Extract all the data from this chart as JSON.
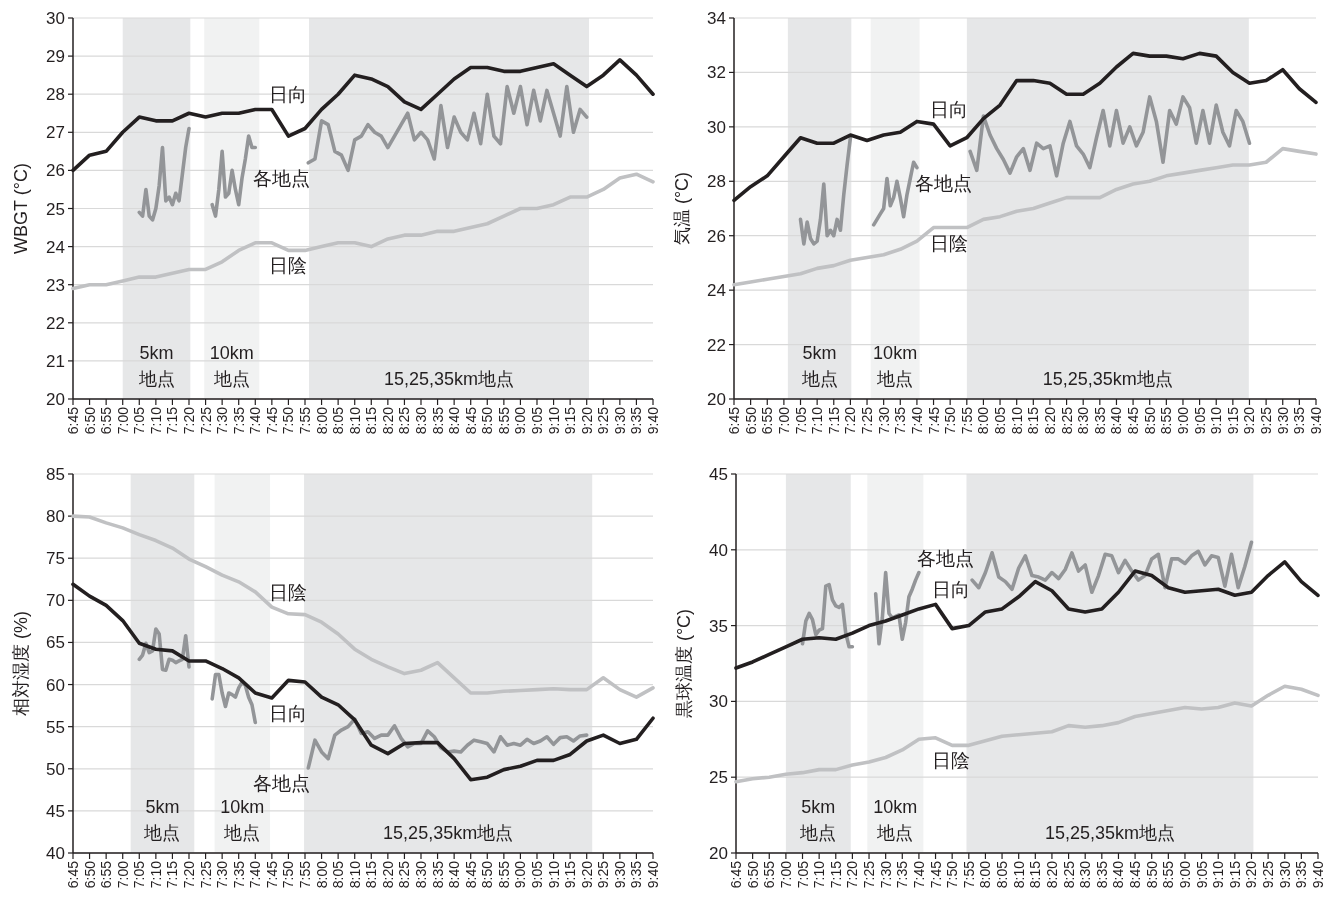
{
  "chart_data": [
    {
      "type": "line",
      "ylabel": "WBGT (°C)",
      "xlim": [
        6.75,
        9.6667
      ],
      "ylim": [
        20,
        30
      ],
      "yticks": [
        20,
        21,
        22,
        23,
        24,
        25,
        26,
        27,
        28,
        29,
        30
      ],
      "grid": "y",
      "xticks": [
        {
          "value": 6.75,
          "label": "6:45"
        },
        {
          "value": 6.8333,
          "label": "6:50"
        },
        {
          "value": 6.9167,
          "label": "6:55"
        },
        {
          "value": 7,
          "label": "7:00"
        },
        {
          "value": 7.0833,
          "label": "7:05"
        },
        {
          "value": 7.1667,
          "label": "7:10"
        },
        {
          "value": 7.25,
          "label": "7:15"
        },
        {
          "value": 7.3333,
          "label": "7:20"
        },
        {
          "value": 7.4167,
          "label": "7:25"
        },
        {
          "value": 7.5,
          "label": "7:30"
        },
        {
          "value": 7.5833,
          "label": "7:35"
        },
        {
          "value": 7.6667,
          "label": "7:40"
        },
        {
          "value": 7.75,
          "label": "7:45"
        },
        {
          "value": 7.8333,
          "label": "7:50"
        },
        {
          "value": 7.9167,
          "label": "7:55"
        },
        {
          "value": 8,
          "label": "8:00"
        },
        {
          "value": 8.0833,
          "label": "8:05"
        },
        {
          "value": 8.1667,
          "label": "8:10"
        },
        {
          "value": 8.25,
          "label": "8:15"
        },
        {
          "value": 8.3333,
          "label": "8:20"
        },
        {
          "value": 8.4167,
          "label": "8:25"
        },
        {
          "value": 8.5,
          "label": "8:30"
        },
        {
          "value": 8.5833,
          "label": "8:35"
        },
        {
          "value": 8.6667,
          "label": "8:40"
        },
        {
          "value": 8.75,
          "label": "8:45"
        },
        {
          "value": 8.8333,
          "label": "8:50"
        },
        {
          "value": 8.9167,
          "label": "8:55"
        },
        {
          "value": 9,
          "label": "9:00"
        },
        {
          "value": 9.0833,
          "label": "9:05"
        },
        {
          "value": 9.1667,
          "label": "9:10"
        },
        {
          "value": 9.25,
          "label": "9:15"
        },
        {
          "value": 9.3333,
          "label": "9:20"
        },
        {
          "value": 9.4167,
          "label": "9:25"
        },
        {
          "value": 9.5,
          "label": "9:30"
        },
        {
          "value": 9.5833,
          "label": "9:35"
        },
        {
          "value": 9.6667,
          "label": "9:40"
        }
      ],
      "bands": [
        {
          "axis": "x",
          "from": 7.0,
          "to": 7.34,
          "label": "5km\n地点",
          "color": "#e6e7e8"
        },
        {
          "axis": "x",
          "from": 7.41,
          "to": 7.687,
          "label": "10km\n地点",
          "color": "#f1f2f2"
        },
        {
          "axis": "x",
          "from": 7.937,
          "to": 9.345,
          "label": "15,25,35km地点",
          "color": "#e6e7e8"
        }
      ],
      "series": [
        {
          "name": "日陰",
          "color": "#c0c1c3",
          "x": [
            6.75,
            6.8333,
            6.9167,
            7,
            7.0833,
            7.1667,
            7.25,
            7.3333,
            7.4167,
            7.5,
            7.5833,
            7.6667,
            7.75,
            7.8333,
            7.9167,
            8,
            8.0833,
            8.1667,
            8.25,
            8.3333,
            8.4167,
            8.5,
            8.5833,
            8.6667,
            8.75,
            8.8333,
            8.9167,
            9,
            9.0833,
            9.1667,
            9.25,
            9.3333,
            9.4167,
            9.5,
            9.5833,
            9.6667
          ],
          "values": [
            22.9,
            23.0,
            23.0,
            23.1,
            23.2,
            23.2,
            23.3,
            23.4,
            23.4,
            23.6,
            23.9,
            24.1,
            24.1,
            23.9,
            23.9,
            24.0,
            24.1,
            24.1,
            24.0,
            24.2,
            24.3,
            24.3,
            24.4,
            24.4,
            24.5,
            24.6,
            24.8,
            25.0,
            25.0,
            25.1,
            25.3,
            25.3,
            25.5,
            25.8,
            25.9,
            25.7
          ]
        },
        {
          "name": "各地点",
          "color": "#939598",
          "x": [
            7.0833,
            7.1,
            7.1167,
            7.1333,
            7.15,
            7.1667,
            7.1833,
            7.2,
            7.2167,
            7.2333,
            7.25,
            7.2667,
            7.2833,
            7.3,
            7.3167,
            7.3333,
            7.4,
            7.45,
            7.4667,
            7.4833,
            7.5,
            7.5167,
            7.5333,
            7.55,
            7.5667,
            7.5833,
            7.6,
            7.6167,
            7.6333,
            7.65,
            7.6667,
            7.8,
            7.9333,
            7.9667,
            8,
            8.0333,
            8.0667,
            8.1,
            8.1333,
            8.1667,
            8.2,
            8.2333,
            8.2667,
            8.3,
            8.3333,
            8.3667,
            8.4,
            8.4333,
            8.4667,
            8.5,
            8.5333,
            8.5667,
            8.6,
            8.6333,
            8.6667,
            8.7,
            8.7333,
            8.7667,
            8.8,
            8.8333,
            8.8667,
            8.9,
            8.9333,
            8.9667,
            9,
            9.0333,
            9.0667,
            9.1,
            9.1333,
            9.1667,
            9.2,
            9.2333,
            9.2667,
            9.3,
            9.3333
          ],
          "values": [
            24.9,
            24.8,
            25.5,
            24.8,
            24.7,
            25.0,
            25.6,
            26.6,
            25.2,
            25.3,
            25.1,
            25.4,
            25.2,
            25.9,
            26.6,
            27.1,
            null,
            25.1,
            24.8,
            25.5,
            26.5,
            25.3,
            25.4,
            26.0,
            25.5,
            25.1,
            25.8,
            26.3,
            26.9,
            26.6,
            26.6,
            null,
            26.2,
            26.3,
            27.3,
            27.2,
            26.5,
            26.4,
            26.0,
            26.8,
            26.9,
            27.2,
            27.0,
            26.9,
            26.6,
            26.9,
            27.2,
            27.5,
            26.8,
            27.0,
            26.8,
            26.3,
            27.7,
            26.6,
            27.4,
            27.0,
            26.8,
            27.5,
            26.7,
            28.0,
            26.9,
            26.7,
            28.2,
            27.5,
            28.2,
            27.2,
            28.1,
            27.3,
            28.1,
            27.5,
            26.9,
            28.2,
            27.0,
            27.6,
            27.4
          ]
        },
        {
          "name": "日向",
          "color": "#231f20",
          "x": [
            6.75,
            6.8333,
            6.9167,
            7,
            7.0833,
            7.1667,
            7.25,
            7.3333,
            7.4167,
            7.5,
            7.5833,
            7.6667,
            7.75,
            7.8333,
            7.9167,
            8,
            8.0833,
            8.1667,
            8.25,
            8.3333,
            8.4167,
            8.5,
            8.5833,
            8.6667,
            8.75,
            8.8333,
            8.9167,
            9,
            9.0833,
            9.1667,
            9.25,
            9.3333,
            9.4167,
            9.5,
            9.5833,
            9.6667
          ],
          "values": [
            26.0,
            26.4,
            26.5,
            27.0,
            27.4,
            27.3,
            27.3,
            27.5,
            27.4,
            27.5,
            27.5,
            27.6,
            27.6,
            26.9,
            27.1,
            27.6,
            28.0,
            28.5,
            28.4,
            28.2,
            27.8,
            27.6,
            28.0,
            28.4,
            28.7,
            28.7,
            28.6,
            28.6,
            28.7,
            28.8,
            28.5,
            28.2,
            28.5,
            28.9,
            28.5,
            28.0
          ]
        }
      ]
    },
    {
      "type": "line",
      "ylabel": "気温 (°C)",
      "xlim": [
        6.75,
        9.6667
      ],
      "ylim": [
        20,
        34
      ],
      "yticks": [
        20,
        22,
        24,
        26,
        28,
        30,
        32,
        34
      ],
      "grid": "y",
      "xticks": [
        {
          "value": 6.75,
          "label": "6:45"
        },
        {
          "value": 6.8333,
          "label": "6:50"
        },
        {
          "value": 6.9167,
          "label": "6:55"
        },
        {
          "value": 7,
          "label": "7:00"
        },
        {
          "value": 7.0833,
          "label": "7:05"
        },
        {
          "value": 7.1667,
          "label": "7:10"
        },
        {
          "value": 7.25,
          "label": "7:15"
        },
        {
          "value": 7.3333,
          "label": "7:20"
        },
        {
          "value": 7.4167,
          "label": "7:25"
        },
        {
          "value": 7.5,
          "label": "7:30"
        },
        {
          "value": 7.5833,
          "label": "7:35"
        },
        {
          "value": 7.6667,
          "label": "7:40"
        },
        {
          "value": 7.75,
          "label": "7:45"
        },
        {
          "value": 7.8333,
          "label": "7:50"
        },
        {
          "value": 7.9167,
          "label": "7:55"
        },
        {
          "value": 8,
          "label": "8:00"
        },
        {
          "value": 8.0833,
          "label": "8:05"
        },
        {
          "value": 8.1667,
          "label": "8:10"
        },
        {
          "value": 8.25,
          "label": "8:15"
        },
        {
          "value": 8.3333,
          "label": "8:20"
        },
        {
          "value": 8.4167,
          "label": "8:25"
        },
        {
          "value": 8.5,
          "label": "8:30"
        },
        {
          "value": 8.5833,
          "label": "8:35"
        },
        {
          "value": 8.6667,
          "label": "8:40"
        },
        {
          "value": 8.75,
          "label": "8:45"
        },
        {
          "value": 8.8333,
          "label": "8:50"
        },
        {
          "value": 8.9167,
          "label": "8:55"
        },
        {
          "value": 9,
          "label": "9:00"
        },
        {
          "value": 9.0833,
          "label": "9:05"
        },
        {
          "value": 9.1667,
          "label": "9:10"
        },
        {
          "value": 9.25,
          "label": "9:15"
        },
        {
          "value": 9.3333,
          "label": "9:20"
        },
        {
          "value": 9.4167,
          "label": "9:25"
        },
        {
          "value": 9.5,
          "label": "9:30"
        },
        {
          "value": 9.5833,
          "label": "9:35"
        },
        {
          "value": 9.6667,
          "label": "9:40"
        }
      ],
      "bands": [
        {
          "axis": "x",
          "from": 7.02,
          "to": 7.338,
          "label": "5km\n地点",
          "color": "#e6e7e8"
        },
        {
          "axis": "x",
          "from": 7.435,
          "to": 7.68,
          "label": "10km\n地点",
          "color": "#f1f2f2"
        },
        {
          "axis": "x",
          "from": 7.917,
          "to": 9.33,
          "label": "15,25,35km地点",
          "color": "#e6e7e8"
        }
      ],
      "series": [
        {
          "name": "日陰",
          "color": "#c0c1c3",
          "x": [
            6.75,
            6.8333,
            6.9167,
            7,
            7.0833,
            7.1667,
            7.25,
            7.3333,
            7.4167,
            7.5,
            7.5833,
            7.6667,
            7.75,
            7.8333,
            7.9167,
            8,
            8.0833,
            8.1667,
            8.25,
            8.3333,
            8.4167,
            8.5,
            8.5833,
            8.6667,
            8.75,
            8.8333,
            8.9167,
            9,
            9.0833,
            9.1667,
            9.25,
            9.3333,
            9.4167,
            9.5,
            9.5833,
            9.6667
          ],
          "values": [
            24.2,
            24.3,
            24.4,
            24.5,
            24.6,
            24.8,
            24.9,
            25.1,
            25.2,
            25.3,
            25.5,
            25.8,
            26.3,
            26.3,
            26.3,
            26.6,
            26.7,
            26.9,
            27.0,
            27.2,
            27.4,
            27.4,
            27.4,
            27.7,
            27.9,
            28.0,
            28.2,
            28.3,
            28.4,
            28.5,
            28.6,
            28.6,
            28.7,
            29.2,
            29.1,
            29.0
          ]
        },
        {
          "name": "各地点",
          "color": "#939598",
          "x": [
            7.0833,
            7.1,
            7.1167,
            7.1333,
            7.15,
            7.1667,
            7.1833,
            7.2,
            7.2167,
            7.2333,
            7.25,
            7.2667,
            7.2833,
            7.3,
            7.3167,
            7.3333,
            7.4,
            7.45,
            7.4667,
            7.4833,
            7.5,
            7.5167,
            7.5333,
            7.55,
            7.5667,
            7.5833,
            7.6,
            7.6167,
            7.6333,
            7.65,
            7.6667,
            7.8,
            7.9333,
            7.9667,
            8,
            8.0333,
            8.0667,
            8.1,
            8.1333,
            8.1667,
            8.2,
            8.2333,
            8.2667,
            8.3,
            8.3333,
            8.3667,
            8.4,
            8.4333,
            8.4667,
            8.5,
            8.5333,
            8.5667,
            8.6,
            8.6333,
            8.6667,
            8.7,
            8.7333,
            8.7667,
            8.8,
            8.8333,
            8.8667,
            8.9,
            8.9333,
            8.9667,
            9,
            9.0333,
            9.0667,
            9.1,
            9.1333,
            9.1667,
            9.2,
            9.2333,
            9.2667,
            9.3,
            9.3333
          ],
          "values": [
            26.6,
            25.7,
            26.5,
            25.9,
            25.7,
            25.8,
            26.6,
            27.9,
            26.0,
            26.2,
            26.0,
            26.6,
            26.2,
            27.5,
            28.6,
            29.6,
            null,
            26.4,
            26.6,
            26.8,
            27.0,
            28.1,
            27.1,
            27.4,
            28.0,
            27.4,
            26.7,
            27.5,
            28.1,
            28.7,
            28.5,
            null,
            29.1,
            28.4,
            30.4,
            29.7,
            29.2,
            28.8,
            28.3,
            28.9,
            29.2,
            28.4,
            29.4,
            29.2,
            29.3,
            28.2,
            29.4,
            30.2,
            29.3,
            29.0,
            28.5,
            29.6,
            30.6,
            29.3,
            30.6,
            29.4,
            30.0,
            29.3,
            29.8,
            31.1,
            30.2,
            28.7,
            30.6,
            30.1,
            31.1,
            30.7,
            29.4,
            30.6,
            29.4,
            30.8,
            29.8,
            29.3,
            30.6,
            30.2,
            29.4
          ]
        },
        {
          "name": "日向",
          "color": "#231f20",
          "x": [
            6.75,
            6.8333,
            6.9167,
            7,
            7.0833,
            7.1667,
            7.25,
            7.3333,
            7.4167,
            7.5,
            7.5833,
            7.6667,
            7.75,
            7.8333,
            7.9167,
            8,
            8.0833,
            8.1667,
            8.25,
            8.3333,
            8.4167,
            8.5,
            8.5833,
            8.6667,
            8.75,
            8.8333,
            8.9167,
            9,
            9.0833,
            9.1667,
            9.25,
            9.3333,
            9.4167,
            9.5,
            9.5833,
            9.6667
          ],
          "values": [
            27.3,
            27.8,
            28.2,
            28.9,
            29.6,
            29.4,
            29.4,
            29.7,
            29.5,
            29.7,
            29.8,
            30.2,
            30.1,
            29.3,
            29.6,
            30.3,
            30.8,
            31.7,
            31.7,
            31.6,
            31.2,
            31.2,
            31.6,
            32.2,
            32.7,
            32.6,
            32.6,
            32.5,
            32.7,
            32.6,
            32.0,
            31.6,
            31.7,
            32.1,
            31.4,
            30.9
          ]
        }
      ]
    },
    {
      "type": "line",
      "ylabel": "相対湿度 (%)",
      "xlim": [
        6.75,
        9.6667
      ],
      "ylim": [
        40,
        85
      ],
      "yticks": [
        40,
        45,
        50,
        55,
        60,
        65,
        70,
        75,
        80,
        85
      ],
      "grid": "y",
      "xticks": [
        {
          "value": 6.75,
          "label": "6:45"
        },
        {
          "value": 6.8333,
          "label": "6:50"
        },
        {
          "value": 6.9167,
          "label": "6:55"
        },
        {
          "value": 7,
          "label": "7:00"
        },
        {
          "value": 7.0833,
          "label": "7:05"
        },
        {
          "value": 7.1667,
          "label": "7:10"
        },
        {
          "value": 7.25,
          "label": "7:15"
        },
        {
          "value": 7.3333,
          "label": "7:20"
        },
        {
          "value": 7.4167,
          "label": "7:25"
        },
        {
          "value": 7.5,
          "label": "7:30"
        },
        {
          "value": 7.5833,
          "label": "7:35"
        },
        {
          "value": 7.6667,
          "label": "7:40"
        },
        {
          "value": 7.75,
          "label": "7:45"
        },
        {
          "value": 7.8333,
          "label": "7:50"
        },
        {
          "value": 7.9167,
          "label": "7:55"
        },
        {
          "value": 8,
          "label": "8:00"
        },
        {
          "value": 8.0833,
          "label": "8:05"
        },
        {
          "value": 8.1667,
          "label": "8:10"
        },
        {
          "value": 8.25,
          "label": "8:15"
        },
        {
          "value": 8.3333,
          "label": "8:20"
        },
        {
          "value": 8.4167,
          "label": "8:25"
        },
        {
          "value": 8.5,
          "label": "8:30"
        },
        {
          "value": 8.5833,
          "label": "8:35"
        },
        {
          "value": 8.6667,
          "label": "8:40"
        },
        {
          "value": 8.75,
          "label": "8:45"
        },
        {
          "value": 8.8333,
          "label": "8:50"
        },
        {
          "value": 8.9167,
          "label": "8:55"
        },
        {
          "value": 9,
          "label": "9:00"
        },
        {
          "value": 9.0833,
          "label": "9:05"
        },
        {
          "value": 9.1667,
          "label": "9:10"
        },
        {
          "value": 9.25,
          "label": "9:15"
        },
        {
          "value": 9.3333,
          "label": "9:20"
        },
        {
          "value": 9.4167,
          "label": "9:25"
        },
        {
          "value": 9.5,
          "label": "9:30"
        },
        {
          "value": 9.5833,
          "label": "9:35"
        },
        {
          "value": 9.6667,
          "label": "9:40"
        }
      ],
      "bands": [
        {
          "axis": "x",
          "from": 7.04,
          "to": 7.36,
          "label": "5km\n地点",
          "color": "#e6e7e8"
        },
        {
          "axis": "x",
          "from": 7.462,
          "to": 7.741,
          "label": "10km\n地点",
          "color": "#f1f2f2"
        },
        {
          "axis": "x",
          "from": 7.912,
          "to": 9.361,
          "label": "15,25,35km地点",
          "color": "#e6e7e8"
        }
      ],
      "series": [
        {
          "name": "日陰",
          "color": "#c0c1c3",
          "x": [
            6.75,
            6.8333,
            6.9167,
            7,
            7.0833,
            7.1667,
            7.25,
            7.3333,
            7.4167,
            7.5,
            7.5833,
            7.6667,
            7.75,
            7.8333,
            7.9167,
            8,
            8.0833,
            8.1667,
            8.25,
            8.3333,
            8.4167,
            8.5,
            8.5833,
            8.6667,
            8.75,
            8.8333,
            8.9167,
            9,
            9.0833,
            9.1667,
            9.25,
            9.3333,
            9.4167,
            9.5,
            9.5833,
            9.6667
          ],
          "values": [
            80.0,
            79.9,
            79.2,
            78.6,
            77.8,
            77.1,
            76.2,
            74.9,
            74.0,
            73.0,
            72.2,
            71.0,
            69.2,
            68.4,
            68.3,
            67.4,
            66.0,
            64.2,
            63.0,
            62.1,
            61.3,
            61.7,
            62.6,
            60.8,
            59.0,
            59.0,
            59.2,
            59.3,
            59.4,
            59.5,
            59.4,
            59.4,
            60.8,
            59.4,
            58.5,
            59.6
          ]
        },
        {
          "name": "各地点",
          "color": "#939598",
          "x": [
            7.0833,
            7.1,
            7.1167,
            7.1333,
            7.15,
            7.1667,
            7.1833,
            7.2,
            7.2167,
            7.2333,
            7.25,
            7.2667,
            7.2833,
            7.3,
            7.3167,
            7.3333,
            7.4,
            7.45,
            7.4667,
            7.4833,
            7.5,
            7.5167,
            7.5333,
            7.55,
            7.5667,
            7.5833,
            7.6,
            7.6167,
            7.6333,
            7.65,
            7.6667,
            7.8,
            7.9333,
            7.9667,
            8,
            8.0333,
            8.0667,
            8.1,
            8.1333,
            8.1667,
            8.2,
            8.2333,
            8.2667,
            8.3,
            8.3333,
            8.3667,
            8.4,
            8.4333,
            8.4667,
            8.5,
            8.5333,
            8.5667,
            8.6,
            8.6333,
            8.6667,
            8.7,
            8.7333,
            8.7667,
            8.8,
            8.8333,
            8.8667,
            8.9,
            8.9333,
            8.9667,
            9,
            9.0333,
            9.0667,
            9.1,
            9.1333,
            9.1667,
            9.2,
            9.2333,
            9.2667,
            9.3,
            9.3333
          ],
          "values": [
            63.0,
            63.5,
            64.9,
            63.8,
            64.0,
            66.6,
            66.0,
            61.8,
            61.7,
            63.0,
            62.9,
            62.6,
            62.8,
            63.0,
            65.8,
            62.1,
            null,
            58.3,
            61.2,
            61.2,
            59.0,
            57.4,
            59.0,
            58.8,
            58.5,
            59.6,
            60.3,
            59.9,
            58.5,
            57.6,
            55.5,
            null,
            50.1,
            53.4,
            52.0,
            51.2,
            54.0,
            54.6,
            55.0,
            55.9,
            54.2,
            54.4,
            53.6,
            54.0,
            54.0,
            55.1,
            53.6,
            52.6,
            53.0,
            53.0,
            54.5,
            53.8,
            52.5,
            52.0,
            52.1,
            52.0,
            52.8,
            53.4,
            53.2,
            53.0,
            52.0,
            53.8,
            52.8,
            53.0,
            52.8,
            53.5,
            53.0,
            53.3,
            53.8,
            52.9,
            53.7,
            53.8,
            53.3,
            53.9,
            54.0
          ]
        },
        {
          "name": "日向",
          "color": "#231f20",
          "x": [
            6.75,
            6.8333,
            6.9167,
            7,
            7.0833,
            7.1667,
            7.25,
            7.3333,
            7.4167,
            7.5,
            7.5833,
            7.6667,
            7.75,
            7.8333,
            7.9167,
            8,
            8.0833,
            8.1667,
            8.25,
            8.3333,
            8.4167,
            8.5,
            8.5833,
            8.6667,
            8.75,
            8.8333,
            8.9167,
            9,
            9.0833,
            9.1667,
            9.25,
            9.3333,
            9.4167,
            9.5,
            9.5833,
            9.6667
          ],
          "values": [
            71.9,
            70.5,
            69.4,
            67.6,
            64.9,
            64.2,
            64.0,
            62.8,
            62.8,
            61.9,
            60.8,
            59.0,
            58.4,
            60.5,
            60.3,
            58.5,
            57.6,
            55.8,
            52.8,
            51.8,
            53.0,
            53.1,
            53.1,
            51.2,
            48.7,
            49.0,
            49.9,
            50.3,
            51.0,
            51.0,
            51.7,
            53.3,
            54.0,
            53.0,
            53.5,
            56.0
          ]
        }
      ]
    },
    {
      "type": "line",
      "ylabel": "黒球温度 (°C)",
      "xlim": [
        6.75,
        9.6667
      ],
      "ylim": [
        20,
        45
      ],
      "yticks": [
        20,
        25,
        30,
        35,
        40,
        45
      ],
      "grid": "y",
      "xticks": [
        {
          "value": 6.75,
          "label": "6:45"
        },
        {
          "value": 6.8333,
          "label": "6:50"
        },
        {
          "value": 6.9167,
          "label": "6:55"
        },
        {
          "value": 7,
          "label": "7:00"
        },
        {
          "value": 7.0833,
          "label": "7:05"
        },
        {
          "value": 7.1667,
          "label": "7:10"
        },
        {
          "value": 7.25,
          "label": "7:15"
        },
        {
          "value": 7.3333,
          "label": "7:20"
        },
        {
          "value": 7.4167,
          "label": "7:25"
        },
        {
          "value": 7.5,
          "label": "7:30"
        },
        {
          "value": 7.5833,
          "label": "7:35"
        },
        {
          "value": 7.6667,
          "label": "7:40"
        },
        {
          "value": 7.75,
          "label": "7:45"
        },
        {
          "value": 7.8333,
          "label": "7:50"
        },
        {
          "value": 7.9167,
          "label": "7:55"
        },
        {
          "value": 8,
          "label": "8:00"
        },
        {
          "value": 8.0833,
          "label": "8:05"
        },
        {
          "value": 8.1667,
          "label": "8:10"
        },
        {
          "value": 8.25,
          "label": "8:15"
        },
        {
          "value": 8.3333,
          "label": "8:20"
        },
        {
          "value": 8.4167,
          "label": "8:25"
        },
        {
          "value": 8.5,
          "label": "8:30"
        },
        {
          "value": 8.5833,
          "label": "8:35"
        },
        {
          "value": 8.6667,
          "label": "8:40"
        },
        {
          "value": 8.75,
          "label": "8:45"
        },
        {
          "value": 8.8333,
          "label": "8:50"
        },
        {
          "value": 8.9167,
          "label": "8:55"
        },
        {
          "value": 9,
          "label": "9:00"
        },
        {
          "value": 9.0833,
          "label": "9:05"
        },
        {
          "value": 9.1667,
          "label": "9:10"
        },
        {
          "value": 9.25,
          "label": "9:15"
        },
        {
          "value": 9.3333,
          "label": "9:20"
        },
        {
          "value": 9.4167,
          "label": "9:25"
        },
        {
          "value": 9.5,
          "label": "9:30"
        },
        {
          "value": 9.5833,
          "label": "9:35"
        },
        {
          "value": 9.6667,
          "label": "9:40"
        }
      ],
      "bands": [
        {
          "axis": "x",
          "from": 7.0,
          "to": 7.325,
          "label": "5km\n地点",
          "color": "#e6e7e8"
        },
        {
          "axis": "x",
          "from": 7.408,
          "to": 7.689,
          "label": "10km\n地点",
          "color": "#f1f2f2"
        },
        {
          "axis": "x",
          "from": 7.905,
          "to": 9.343,
          "label": "15,25,35km地点",
          "color": "#e6e7e8"
        }
      ],
      "series": [
        {
          "name": "日陰",
          "color": "#c0c1c3",
          "x": [
            6.75,
            6.8333,
            6.9167,
            7,
            7.0833,
            7.1667,
            7.25,
            7.3333,
            7.4167,
            7.5,
            7.5833,
            7.6667,
            7.75,
            7.8333,
            7.9167,
            8,
            8.0833,
            8.1667,
            8.25,
            8.3333,
            8.4167,
            8.5,
            8.5833,
            8.6667,
            8.75,
            8.8333,
            8.9167,
            9,
            9.0833,
            9.1667,
            9.25,
            9.3333,
            9.4167,
            9.5,
            9.5833,
            9.6667
          ],
          "values": [
            24.7,
            24.9,
            25.0,
            25.2,
            25.3,
            25.5,
            25.5,
            25.8,
            26.0,
            26.3,
            26.8,
            27.5,
            27.6,
            27.1,
            27.1,
            27.4,
            27.7,
            27.8,
            27.9,
            28.0,
            28.4,
            28.3,
            28.4,
            28.6,
            29.0,
            29.2,
            29.4,
            29.6,
            29.5,
            29.6,
            29.9,
            29.7,
            30.4,
            31.0,
            30.8,
            30.4
          ]
        },
        {
          "name": "各地点",
          "color": "#939598",
          "x": [
            7.0833,
            7.1,
            7.1167,
            7.1333,
            7.15,
            7.1667,
            7.1833,
            7.2,
            7.2167,
            7.2333,
            7.25,
            7.2667,
            7.2833,
            7.3,
            7.3167,
            7.3333,
            7.4,
            7.45,
            7.4667,
            7.4833,
            7.5,
            7.5167,
            7.5333,
            7.55,
            7.5667,
            7.5833,
            7.6,
            7.6167,
            7.6333,
            7.65,
            7.6667,
            7.8,
            7.9333,
            7.9667,
            8,
            8.0333,
            8.0667,
            8.1,
            8.1333,
            8.1667,
            8.2,
            8.2333,
            8.2667,
            8.3,
            8.3333,
            8.3667,
            8.4,
            8.4333,
            8.4667,
            8.5,
            8.5333,
            8.5667,
            8.6,
            8.6333,
            8.6667,
            8.7,
            8.7333,
            8.7667,
            8.8,
            8.8333,
            8.8667,
            8.9,
            8.9333,
            8.9667,
            9,
            9.0333,
            9.0667,
            9.1,
            9.1333,
            9.1667,
            9.2,
            9.2333,
            9.2667,
            9.3,
            9.3333
          ],
          "values": [
            33.8,
            35.3,
            35.8,
            35.4,
            34.4,
            34.7,
            34.8,
            37.6,
            37.7,
            36.7,
            36.3,
            36.2,
            36.4,
            34.5,
            33.6,
            33.6,
            null,
            37.1,
            33.8,
            35.5,
            38.5,
            35.8,
            35.5,
            35.6,
            35.7,
            34.1,
            35.2,
            36.9,
            37.4,
            38.0,
            38.5,
            null,
            38.0,
            37.5,
            38.5,
            39.8,
            38.2,
            37.9,
            37.4,
            38.8,
            39.6,
            38.3,
            38.2,
            38.0,
            38.5,
            38.1,
            38.7,
            39.8,
            38.6,
            39.0,
            37.2,
            38.3,
            39.7,
            39.6,
            38.5,
            39.3,
            38.6,
            38.0,
            38.3,
            39.4,
            39.7,
            37.5,
            39.4,
            39.4,
            39.1,
            39.6,
            39.9,
            39.0,
            39.6,
            39.5,
            37.6,
            39.7,
            37.5,
            38.9,
            40.5
          ]
        },
        {
          "name": "日向",
          "color": "#231f20",
          "x": [
            6.75,
            6.8333,
            6.9167,
            7,
            7.0833,
            7.1667,
            7.25,
            7.3333,
            7.4167,
            7.5,
            7.5833,
            7.6667,
            7.75,
            7.8333,
            7.9167,
            8,
            8.0833,
            8.1667,
            8.25,
            8.3333,
            8.4167,
            8.5,
            8.5833,
            8.6667,
            8.75,
            8.8333,
            8.9167,
            9,
            9.0833,
            9.1667,
            9.25,
            9.3333,
            9.4167,
            9.5,
            9.5833,
            9.6667
          ],
          "values": [
            32.2,
            32.6,
            33.1,
            33.6,
            34.1,
            34.2,
            34.1,
            34.5,
            35.0,
            35.3,
            35.7,
            36.1,
            36.4,
            34.8,
            35.0,
            35.9,
            36.1,
            36.9,
            37.9,
            37.3,
            36.1,
            35.9,
            36.1,
            37.2,
            38.6,
            38.3,
            37.5,
            37.2,
            37.3,
            37.4,
            37.0,
            37.2,
            38.3,
            39.2,
            37.9,
            37.0
          ]
        }
      ]
    }
  ]
}
